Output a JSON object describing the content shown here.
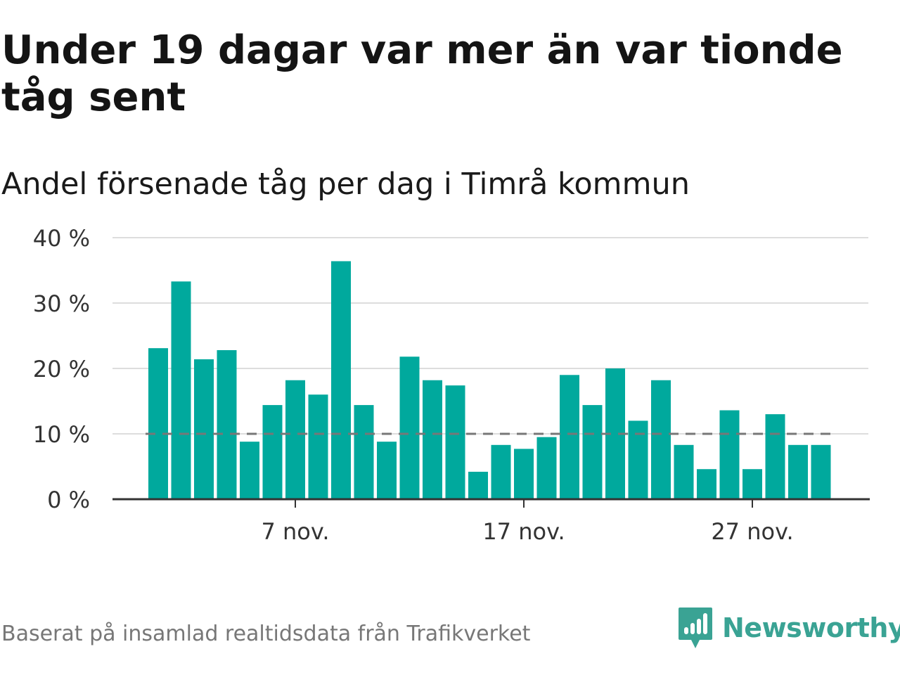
{
  "title": "Under 19 dagar var mer än var tionde tåg sent",
  "subtitle": "Andel försenade tåg per dag i Timrå kommun",
  "footer": "Baserat på insamlad realtidsdata från Trafikverket",
  "brand": {
    "name": "Newsworthy",
    "color": "#3aa394",
    "icon": "newsworthy-logo-icon"
  },
  "colors": {
    "bar": "#00a99d",
    "reference_line": "#777777",
    "grid": "#dddddd",
    "axis": "#333333"
  },
  "chart_data": {
    "type": "bar",
    "x_unit": "day of November",
    "x": [
      1,
      2,
      3,
      4,
      5,
      6,
      7,
      8,
      9,
      10,
      11,
      12,
      13,
      14,
      15,
      16,
      17,
      18,
      19,
      20,
      21,
      22,
      23,
      24,
      25,
      26,
      27,
      28,
      29,
      30
    ],
    "values": [
      23.1,
      33.3,
      21.4,
      22.8,
      8.8,
      14.4,
      18.2,
      16.0,
      36.4,
      14.4,
      8.8,
      21.8,
      18.2,
      17.4,
      4.2,
      8.3,
      7.7,
      9.5,
      19.0,
      14.4,
      20.0,
      12.0,
      18.2,
      8.3,
      4.6,
      13.6,
      4.6,
      13.0,
      8.3,
      8.3
    ],
    "ylim": [
      0,
      40
    ],
    "y_ticks": [
      0,
      10,
      20,
      30,
      40
    ],
    "y_tick_labels": [
      "0 %",
      "10 %",
      "20 %",
      "30 %",
      "40 %"
    ],
    "x_ticks": [
      7,
      17,
      27
    ],
    "x_tick_labels": [
      "7 nov.",
      "17 nov.",
      "27 nov."
    ],
    "reference_line": 10,
    "grid": true
  }
}
